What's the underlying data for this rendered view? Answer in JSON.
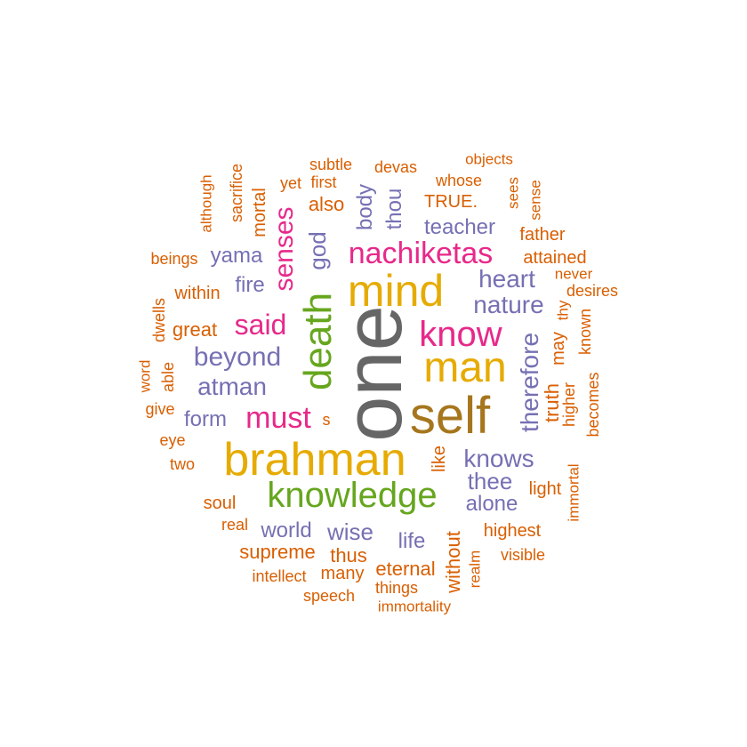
{
  "colors": {
    "gray": "#666666",
    "olive": "#A6761D",
    "gold": "#E6AB02",
    "green": "#66A61E",
    "pink": "#E7298A",
    "purple": "#7570B3",
    "orange": "#D95F02"
  },
  "words": [
    {
      "text": "one"
    },
    {
      "text": "self"
    },
    {
      "text": "brahman"
    },
    {
      "text": "mind"
    },
    {
      "text": "man"
    },
    {
      "text": "death"
    },
    {
      "text": "knowledge"
    },
    {
      "text": "know"
    },
    {
      "text": "nachiketas"
    },
    {
      "text": "must"
    },
    {
      "text": "said"
    },
    {
      "text": "senses"
    },
    {
      "text": "beyond"
    },
    {
      "text": "atman"
    },
    {
      "text": "therefore"
    },
    {
      "text": "knows"
    },
    {
      "text": "god"
    },
    {
      "text": "heart"
    },
    {
      "text": "nature"
    },
    {
      "text": "thee"
    },
    {
      "text": "alone"
    },
    {
      "text": "teacher"
    },
    {
      "text": "yama"
    },
    {
      "text": "fire"
    },
    {
      "text": "form"
    },
    {
      "text": "world"
    },
    {
      "text": "wise"
    },
    {
      "text": "life"
    },
    {
      "text": "body"
    },
    {
      "text": "thou"
    },
    {
      "text": "truth"
    },
    {
      "text": "supreme"
    },
    {
      "text": "great"
    },
    {
      "text": "also"
    },
    {
      "text": "TRUE."
    },
    {
      "text": "may"
    },
    {
      "text": "eternal"
    },
    {
      "text": "without"
    },
    {
      "text": "thus"
    },
    {
      "text": "highest"
    },
    {
      "text": "light"
    },
    {
      "text": "soul"
    },
    {
      "text": "within"
    },
    {
      "text": "many"
    },
    {
      "text": "higher"
    },
    {
      "text": "mortal"
    },
    {
      "text": "father"
    },
    {
      "text": "attained"
    },
    {
      "text": "like"
    },
    {
      "text": "beings"
    },
    {
      "text": "devas"
    },
    {
      "text": "subtle"
    },
    {
      "text": "whose"
    },
    {
      "text": "first"
    },
    {
      "text": "yet"
    },
    {
      "text": "objects"
    },
    {
      "text": "sacrifice"
    },
    {
      "text": "although"
    },
    {
      "text": "sees"
    },
    {
      "text": "sense"
    },
    {
      "text": "never"
    },
    {
      "text": "desires"
    },
    {
      "text": "thy"
    },
    {
      "text": "known"
    },
    {
      "text": "becomes"
    },
    {
      "text": "immortal"
    },
    {
      "text": "visible"
    },
    {
      "text": "realm"
    },
    {
      "text": "things"
    },
    {
      "text": "immortality"
    },
    {
      "text": "speech"
    },
    {
      "text": "intellect"
    },
    {
      "text": "real"
    },
    {
      "text": "two"
    },
    {
      "text": "eye"
    },
    {
      "text": "give"
    },
    {
      "text": "word"
    },
    {
      "text": "able"
    },
    {
      "text": "dwells"
    },
    {
      "text": "s"
    }
  ]
}
